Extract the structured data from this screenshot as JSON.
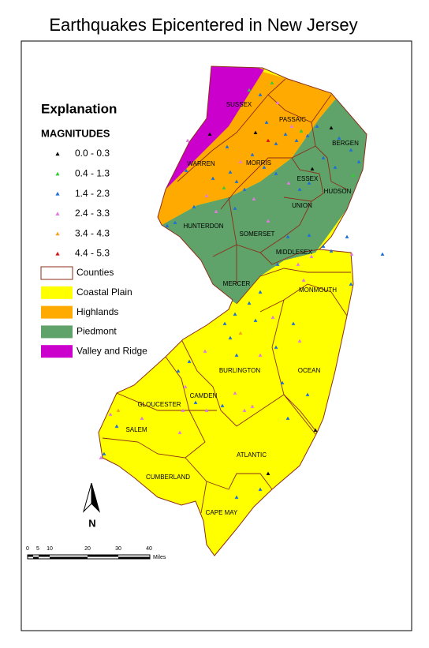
{
  "title": "Earthquakes Epicentered in New Jersey",
  "legend": {
    "title": "Explanation",
    "magnitudes_heading": "MAGNITUDES",
    "magnitudes": [
      {
        "label": "0.0 - 0.3",
        "color": "#000000"
      },
      {
        "label": "0.4 - 1.3",
        "color": "#33cc33"
      },
      {
        "label": "1.4 - 2.3",
        "color": "#1f6fd6"
      },
      {
        "label": "2.4 - 3.3",
        "color": "#e07be0"
      },
      {
        "label": "3.4 - 4.3",
        "color": "#f5a21b"
      },
      {
        "label": "4.4 - 5.3",
        "color": "#dd1111"
      }
    ],
    "areas": [
      {
        "label": "Counties",
        "color": "#ffffff"
      },
      {
        "label": "Coastal Plain",
        "color": "#ffff00"
      },
      {
        "label": "Highlands",
        "color": "#ffaa00"
      },
      {
        "label": "Piedmont",
        "color": "#5fa36a"
      },
      {
        "label": "Valley and Ridge",
        "color": "#cc00cc"
      }
    ]
  },
  "counties": [
    "SUSSEX",
    "PASSAIC",
    "BERGEN",
    "WARREN",
    "MORRIS",
    "ESSEX",
    "HUDSON",
    "UNION",
    "HUNTERDON",
    "SOMERSET",
    "MIDDLESEX",
    "MERCER",
    "MONMOUTH",
    "BURLINGTON",
    "OCEAN",
    "CAMDEN",
    "GLOUCESTER",
    "SALEM",
    "CUMBERLAND",
    "ATLANTIC",
    "CAPE MAY"
  ],
  "north": "N",
  "scale": {
    "ticks": [
      "0",
      "5",
      "10",
      "20",
      "30",
      "40"
    ],
    "unit": "Miles"
  }
}
